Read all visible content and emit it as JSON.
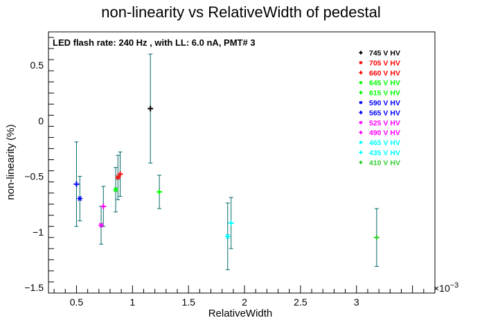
{
  "chart_data": {
    "type": "scatter",
    "title": "non-linearity vs RelativeWidth of pedestal",
    "subtitle": "LED flash rate: 240 Hz , with LL: 6.0 nA, PMT# 3",
    "xlabel": "RelativeWidth",
    "ylabel": "non-linearity (%)",
    "x_multiplier_label": "×10",
    "x_multiplier_exponent": "−3",
    "x_display_range": [
      0.25,
      3.7
    ],
    "xlim": [
      0.00025,
      0.0037
    ],
    "ylim": [
      -1.55,
      0.8
    ],
    "x_ticks": [
      {
        "value": 0.5,
        "label": "0.5"
      },
      {
        "value": 1.0,
        "label": "1"
      },
      {
        "value": 1.5,
        "label": "1.5"
      },
      {
        "value": 2.0,
        "label": "2"
      },
      {
        "value": 2.5,
        "label": "2.5"
      },
      {
        "value": 3.0,
        "label": "3"
      }
    ],
    "y_ticks": [
      {
        "value": 0.5,
        "label": "0.5"
      },
      {
        "value": 0.0,
        "label": "0"
      },
      {
        "value": -0.5,
        "label": "−0.5"
      },
      {
        "value": -1.0,
        "label": "−1"
      },
      {
        "value": -1.5,
        "label": "−1.5"
      }
    ],
    "grid": false,
    "legend_position": "top-right",
    "error_bar_color": "#006666",
    "series": [
      {
        "name": "745 V HV",
        "color": "#000000",
        "marker": "+",
        "points": [
          {
            "x": 0.00116,
            "y": 0.11,
            "err": 0.49
          }
        ]
      },
      {
        "name": "705 V HV",
        "color": "#ff0000",
        "marker": "*",
        "points": [
          {
            "x": 0.00087,
            "y": -0.51,
            "err": 0.2
          }
        ]
      },
      {
        "name": "660 V HV",
        "color": "#ff0000",
        "marker": "+",
        "points": [
          {
            "x": 0.00089,
            "y": -0.48,
            "err": 0.2
          }
        ]
      },
      {
        "name": "645 V HV",
        "color": "#00ff00",
        "marker": "*",
        "points": [
          {
            "x": 0.00085,
            "y": -0.62,
            "err": 0.2
          }
        ]
      },
      {
        "name": "615 V HV",
        "color": "#00ff00",
        "marker": "+",
        "points": [
          {
            "x": 0.00124,
            "y": -0.64,
            "err": 0.15
          }
        ]
      },
      {
        "name": "590 V HV",
        "color": "#0000ff",
        "marker": "*",
        "points": [
          {
            "x": 0.00053,
            "y": -0.7,
            "err": 0.2
          }
        ]
      },
      {
        "name": "565 V HV",
        "color": "#0000ff",
        "marker": "+",
        "points": [
          {
            "x": 0.0005,
            "y": -0.57,
            "err": 0.38
          }
        ]
      },
      {
        "name": "525 V HV",
        "color": "#ff00ff",
        "marker": "*",
        "points": [
          {
            "x": 0.00072,
            "y": -0.94,
            "err": 0.17
          }
        ]
      },
      {
        "name": "490 V HV",
        "color": "#ff00ff",
        "marker": "+",
        "points": [
          {
            "x": 0.00074,
            "y": -0.77,
            "err": 0.18
          }
        ]
      },
      {
        "name": "465 V HV",
        "color": "#00ffff",
        "marker": "*",
        "points": [
          {
            "x": 0.00185,
            "y": -1.04,
            "err": 0.3
          }
        ]
      },
      {
        "name": "435 V HV",
        "color": "#00ffff",
        "marker": "+",
        "points": [
          {
            "x": 0.00188,
            "y": -0.92,
            "err": 0.23
          }
        ]
      },
      {
        "name": "410 V HV",
        "color": "#33cc33",
        "marker": "+",
        "points": [
          {
            "x": 0.00318,
            "y": -1.05,
            "err": 0.26
          }
        ]
      }
    ]
  }
}
